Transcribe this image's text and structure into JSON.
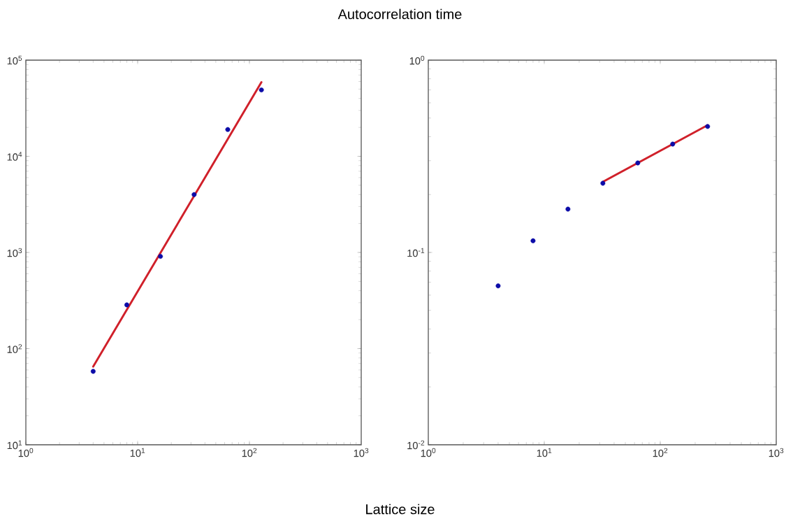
{
  "chart_data": [
    {
      "type": "scatter",
      "title": "Autocorrelation time",
      "xlabel": "Lattice size",
      "log": "xy",
      "marker": "circle",
      "xlim": [
        1,
        1000
      ],
      "ylim": [
        10,
        100000
      ],
      "xticks": [
        {
          "value": 1,
          "label": "10$^{0}$"
        },
        {
          "value": 10,
          "label": "10$^{1}$"
        },
        {
          "value": 100,
          "label": "10$^{2}$"
        },
        {
          "value": 1000,
          "label": "10$^{3}$"
        }
      ],
      "yticks": [
        {
          "value": 10,
          "label": "10$^{1}$"
        },
        {
          "value": 100,
          "label": "10$^{2}$"
        },
        {
          "value": 1000,
          "label": "10$^{3}$"
        },
        {
          "value": 10000,
          "label": "10$^{4}$"
        },
        {
          "value": 100000,
          "label": "10$^{5}$"
        }
      ],
      "series": [
        {
          "color": "#0c0ca8",
          "x": [
            4,
            8,
            16,
            32,
            64,
            128
          ],
          "values": [
            58,
            285,
            910,
            4000,
            19000,
            49000
          ]
        },
        {
          "type": "line",
          "marker": "none",
          "color": "#d0202a",
          "x": [
            4,
            128
          ],
          "values": [
            65,
            59000
          ]
        }
      ]
    },
    {
      "type": "scatter",
      "log": "xy",
      "marker": "circle",
      "xlim": [
        1,
        1000
      ],
      "ylim": [
        0.01,
        1
      ],
      "xticks": [
        {
          "value": 1,
          "label": "10$^{0}$"
        },
        {
          "value": 10,
          "label": "10$^{1}$"
        },
        {
          "value": 100,
          "label": "10$^{2}$"
        },
        {
          "value": 1000,
          "label": "10$^{3}$"
        }
      ],
      "yticks": [
        {
          "value": 0.01,
          "label": "10$^{-2}$"
        },
        {
          "value": 0.1,
          "label": "10$^{-1}$"
        },
        {
          "value": 1,
          "label": "10$^{0}$"
        }
      ],
      "series": [
        {
          "color": "#0c0ca8",
          "x": [
            4,
            8,
            16,
            32,
            64,
            128,
            256
          ],
          "values": [
            0.067,
            0.115,
            0.168,
            0.229,
            0.292,
            0.366,
            0.452
          ]
        },
        {
          "type": "line",
          "marker": "none",
          "color": "#d0202a",
          "x": [
            32,
            256
          ],
          "values": [
            0.233,
            0.459
          ]
        }
      ]
    }
  ]
}
